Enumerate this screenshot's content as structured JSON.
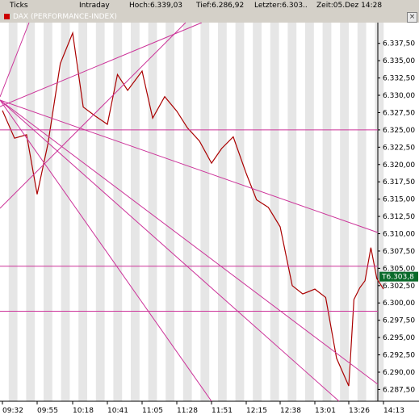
{
  "toolbar": {
    "ticks_label": "Ticks",
    "mode_label": "Intraday",
    "high": "Hoch:6.339,03",
    "low": "Tief:6.286,92",
    "last": "Letzter:6.303..",
    "time": "Zeit:05.Dez 14:28"
  },
  "chart_title": "DAX (PERFORMANCE-INDEX)",
  "close_glyph": "×",
  "colors": {
    "price_line": "#aa0000",
    "trend_lines": "#cc3399",
    "band_light": "#ffffff",
    "band_dark": "#e6e6e6",
    "last_price_label_bg": "#0a6a2a"
  },
  "chart_data": {
    "type": "line",
    "title": "DAX (PERFORMANCE-INDEX)",
    "xlabel": "",
    "ylabel": "",
    "x_ticks": [
      "09:32",
      "09:55",
      "10:18",
      "10:41",
      "11:05",
      "11:28",
      "11:51",
      "12:15",
      "12:38",
      "13:01",
      "13:26",
      "14:13"
    ],
    "y_ticks": [
      "6.337,50",
      "6.335,00",
      "6.332,50",
      "6.330,00",
      "6.327,50",
      "6.325,00",
      "6.322,50",
      "6.320,00",
      "6.317,50",
      "6.315,00",
      "6.312,50",
      "6.310,00",
      "6.307,50",
      "6.305,00",
      "6.302,50",
      "6.300,00",
      "6.297,50",
      "6.295,00",
      "6.292,50",
      "6.290,00",
      "6.287,50"
    ],
    "ylim": [
      6285.8,
      6340.5
    ],
    "last_price_label": "T6.303,8",
    "horizontal_lines": [
      6325.0,
      6305.3,
      6298.8
    ],
    "series": [
      {
        "x": [
          "09:32",
          "09:40",
          "09:48",
          "09:55",
          "10:02",
          "10:10",
          "10:18",
          "10:25",
          "10:33",
          "10:41",
          "10:48",
          "10:55",
          "11:05",
          "11:12",
          "11:20",
          "11:28",
          "11:35",
          "11:43",
          "11:51",
          "11:58",
          "12:06",
          "12:15",
          "12:22",
          "12:30",
          "12:38",
          "12:46",
          "12:53",
          "13:01",
          "13:09",
          "13:17",
          "13:26",
          "13:33",
          "13:41",
          "13:48",
          "13:56",
          "14:04",
          "14:13"
        ],
        "values": [
          6327.8,
          6323.8,
          6324.3,
          6315.7,
          6323.0,
          6334.6,
          6339.0,
          6328.3,
          6327.0,
          6325.8,
          6333.0,
          6330.7,
          6333.5,
          6326.7,
          6329.8,
          6327.7,
          6325.3,
          6323.4,
          6320.2,
          6322.3,
          6324.0,
          6318.7,
          6314.9,
          6313.8,
          6311.0,
          6302.5,
          6301.3,
          6302.0,
          6300.8,
          6292.0,
          6288.0,
          6300.5,
          6302.2,
          6303.2,
          6308.0,
          6303.5,
          6302.0
        ]
      }
    ]
  }
}
